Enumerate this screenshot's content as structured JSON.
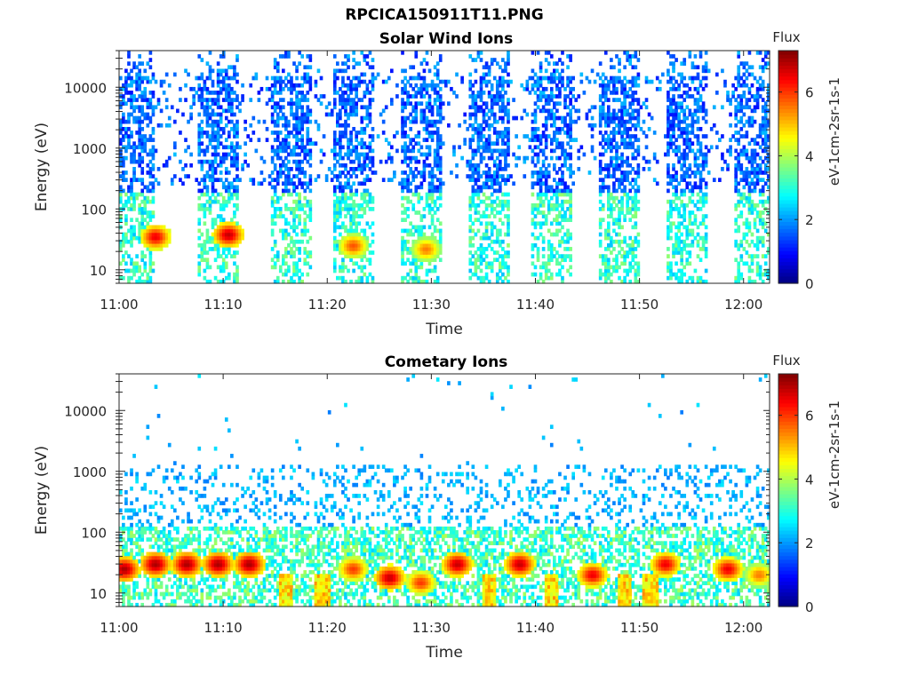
{
  "figure_title": "RPCICA150911T11.PNG",
  "chart_data": [
    {
      "type": "heatmap",
      "title": "Solar Wind Ions",
      "xlabel": "Time",
      "ylabel": "Energy (eV)",
      "y_scale": "log",
      "ylim": [
        6,
        40000
      ],
      "x_ticks": [
        "11:00",
        "11:10",
        "11:20",
        "11:30",
        "11:40",
        "11:50",
        "12:00"
      ],
      "x_range_minutes": [
        0,
        62.5
      ],
      "y_ticks": [
        "10",
        "100",
        "1000",
        "10000"
      ],
      "colorbar": {
        "title": "Flux",
        "label": "eV-1cm-2sr-1s-1",
        "ticks": [
          "0",
          "2",
          "4",
          "6"
        ],
        "range": [
          0,
          7.3
        ],
        "colormap": "jet"
      },
      "burst_centers_minutes": [
        1.5,
        9.5,
        16.5,
        22.5,
        29.0,
        35.5,
        41.5,
        48.0,
        54.5,
        61.0
      ],
      "burst_width_minutes": 4.0,
      "hot_spots": [
        {
          "t": 3.5,
          "energy": 35,
          "flux": 6.5
        },
        {
          "t": 10.5,
          "energy": 38,
          "flux": 6.8
        },
        {
          "t": 22.5,
          "energy": 25,
          "flux": 5.8
        },
        {
          "t": 29.5,
          "energy": 22,
          "flux": 5.5
        }
      ]
    },
    {
      "type": "heatmap",
      "title": "Cometary Ions",
      "xlabel": "Time",
      "ylabel": "Energy (eV)",
      "y_scale": "log",
      "ylim": [
        6,
        40000
      ],
      "x_ticks": [
        "11:00",
        "11:10",
        "11:20",
        "11:30",
        "11:40",
        "11:50",
        "12:00"
      ],
      "x_range_minutes": [
        0,
        62.5
      ],
      "y_ticks": [
        "10",
        "100",
        "1000",
        "10000"
      ],
      "colorbar": {
        "title": "Flux",
        "label": "eV-1cm-2sr-1s-1",
        "ticks": [
          "0",
          "2",
          "4",
          "6"
        ],
        "range": [
          0,
          7.3
        ],
        "colormap": "jet"
      },
      "hot_spots": [
        {
          "t": 0.5,
          "energy": 25,
          "flux": 7.0
        },
        {
          "t": 3.5,
          "energy": 30,
          "flux": 7.0
        },
        {
          "t": 6.5,
          "energy": 30,
          "flux": 7.0
        },
        {
          "t": 9.5,
          "energy": 30,
          "flux": 7.0
        },
        {
          "t": 12.5,
          "energy": 30,
          "flux": 7.0
        },
        {
          "t": 22.5,
          "energy": 25,
          "flux": 6.0
        },
        {
          "t": 26.0,
          "energy": 18,
          "flux": 6.8
        },
        {
          "t": 29.0,
          "energy": 15,
          "flux": 6.0
        },
        {
          "t": 32.5,
          "energy": 30,
          "flux": 6.8
        },
        {
          "t": 38.5,
          "energy": 30,
          "flux": 6.8
        },
        {
          "t": 45.5,
          "energy": 20,
          "flux": 6.5
        },
        {
          "t": 52.5,
          "energy": 30,
          "flux": 6.5
        },
        {
          "t": 58.5,
          "energy": 25,
          "flux": 6.5
        },
        {
          "t": 61.5,
          "energy": 20,
          "flux": 5.5
        }
      ],
      "low_energy_columns_minutes": [
        16,
        19.5,
        35.5,
        41.5,
        48.5,
        51
      ]
    }
  ]
}
